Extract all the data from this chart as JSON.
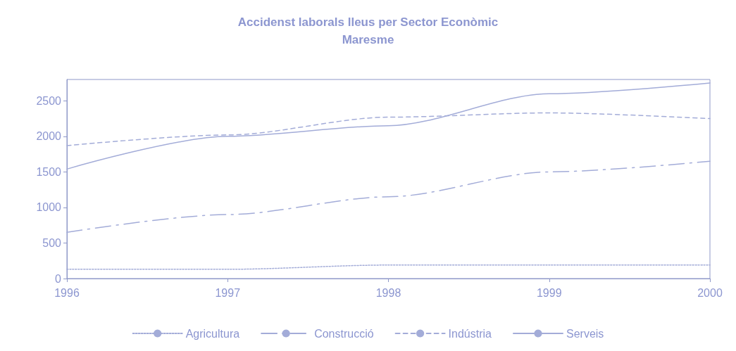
{
  "chart_data": {
    "type": "line",
    "title": "Accidenst laborals lleus per Sector Econòmic",
    "subtitle": "Maresme",
    "x": [
      1996,
      1997,
      1998,
      1999,
      2000
    ],
    "series": [
      {
        "name": "Agricultura",
        "color": "#a3acd8",
        "line_style": "dotted",
        "values": [
          130,
          130,
          190,
          190,
          190
        ]
      },
      {
        "name": "Construcció",
        "color": "#a3acd8",
        "line_style": "dashdot",
        "values": [
          650,
          900,
          1150,
          1500,
          1650
        ]
      },
      {
        "name": "Indústria",
        "color": "#a3acd8",
        "line_style": "dashed",
        "values": [
          1870,
          2020,
          2270,
          2330,
          2250
        ]
      },
      {
        "name": "Serveis",
        "color": "#a3acd8",
        "line_style": "solid",
        "values": [
          1540,
          2000,
          2150,
          2600,
          2750
        ]
      }
    ],
    "xlim": [
      1996,
      2000
    ],
    "xticks": [
      1996,
      1997,
      1998,
      1999,
      2000
    ],
    "ylim": [
      0,
      2800
    ],
    "yticks": [
      0,
      500,
      1000,
      1500,
      2000,
      2500
    ],
    "grid": false,
    "legend": "bottom",
    "marker": "none"
  }
}
